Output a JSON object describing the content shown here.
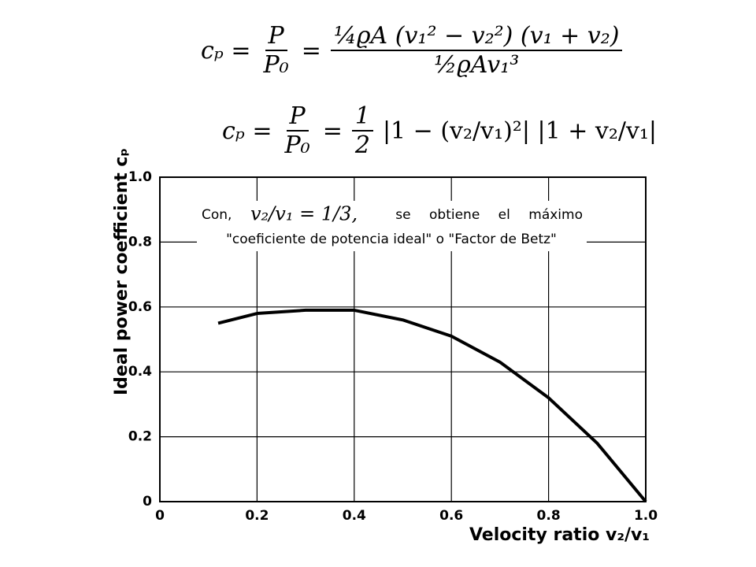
{
  "formulas": [
    {
      "lhs": "cₚ =",
      "frac1_num": "P",
      "frac1_den": "P₀",
      "eq": "=",
      "num": "¼ϱA (v₁² − v₂²) (v₁ + v₂)",
      "den": "½ϱAv₁³"
    },
    {
      "lhs": "cₚ =",
      "frac1_num": "P",
      "frac1_den": "P₀",
      "eq": "=",
      "num": "1",
      "den": "2",
      "rest": "|1 − (v₂/v₁)²| |1 + v₂/v₁|"
    }
  ],
  "chart_data": {
    "type": "line",
    "x_label": "Velocity ratio v₂/v₁",
    "y_label": "Ideal power coefficient cₚ",
    "x": [
      0.12,
      0.2,
      0.3,
      0.333,
      0.4,
      0.5,
      0.6,
      0.7,
      0.8,
      0.9,
      1.0
    ],
    "series": [
      {
        "color": "#000000",
        "values": [
          0.55,
          0.58,
          0.59,
          0.59,
          0.59,
          0.56,
          0.51,
          0.43,
          0.32,
          0.18,
          0
        ]
      }
    ],
    "xlim": [
      0,
      1
    ],
    "ylim": [
      0,
      1
    ],
    "xticks": [
      0,
      0.2,
      0.4,
      0.6,
      0.8,
      {
        "value": 1,
        "label": "1.0"
      }
    ],
    "yticks": [
      0,
      0.2,
      0.4,
      0.6,
      0.8,
      {
        "value": 1,
        "label": "1.0"
      }
    ],
    "grid": true,
    "annotation": {
      "prefix": "Con,",
      "formula": "v₂/v₁ = 1/3,",
      "middle": "se obtiene el máximo",
      "line2": "\"coeficiente de potencia ideal\" o \"Factor de Betz\""
    }
  }
}
